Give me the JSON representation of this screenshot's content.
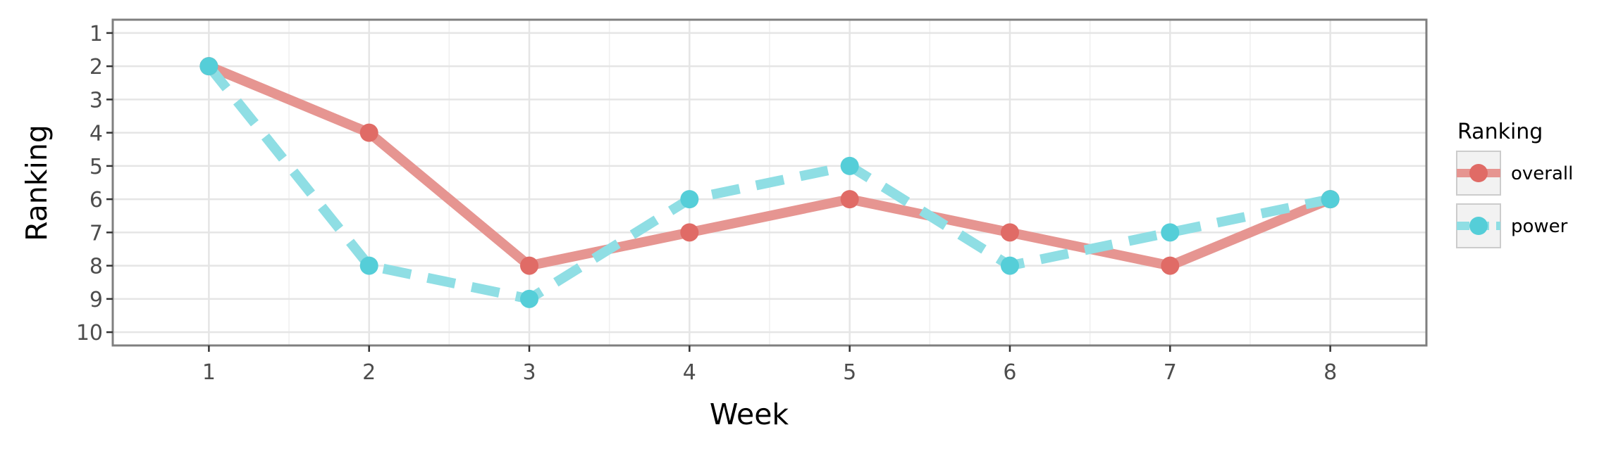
{
  "chart_data": {
    "type": "line",
    "xlabel": "Week",
    "ylabel": "Ranking",
    "x": [
      1,
      2,
      3,
      4,
      5,
      6,
      7,
      8
    ],
    "xlim": [
      0.4,
      8.6
    ],
    "ylim": [
      10.4,
      0.6
    ],
    "y_reversed": true,
    "x_ticks": [
      1,
      2,
      3,
      4,
      5,
      6,
      7,
      8
    ],
    "y_ticks": [
      1,
      2,
      3,
      4,
      5,
      6,
      7,
      8,
      9,
      10
    ],
    "grid": true,
    "legend": {
      "title": "Ranking",
      "placement": "right"
    },
    "series": [
      {
        "name": "overall",
        "values": [
          2,
          4,
          8,
          7,
          6,
          7,
          8,
          6
        ],
        "color": "#E06B66",
        "line_color": "#E69591",
        "dash": "solid"
      },
      {
        "name": "power",
        "values": [
          2,
          8,
          9,
          6,
          5,
          8,
          7,
          6
        ],
        "color": "#55CED8",
        "line_color": "#8FDEE4",
        "dash": "dashed"
      }
    ]
  }
}
